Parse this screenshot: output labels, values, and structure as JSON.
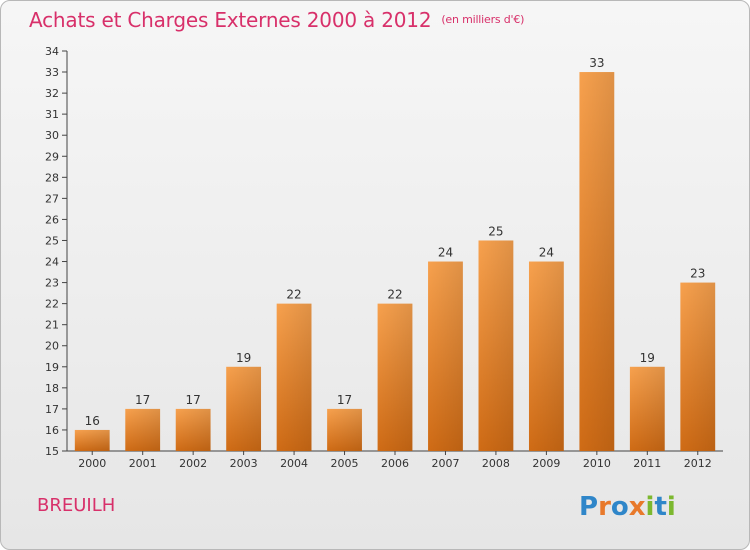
{
  "header": {
    "title": "Achats et Charges Externes 2000 à 2012",
    "unit": "(en milliers d'€)"
  },
  "footer": {
    "commune": "BREUILH",
    "brand": "Proxiti",
    "brand_letters": [
      "P",
      "r",
      "o",
      "x",
      "i",
      "t",
      "i"
    ],
    "brand_colors": [
      "#2f86c9",
      "#e8792b",
      "#2f86c9",
      "#e8792b",
      "#7cb82f",
      "#2f86c9",
      "#7cb82f"
    ]
  },
  "chart_data": {
    "type": "bar",
    "categories": [
      "2000",
      "2001",
      "2002",
      "2003",
      "2004",
      "2005",
      "2006",
      "2007",
      "2008",
      "2009",
      "2010",
      "2011",
      "2012"
    ],
    "values": [
      16,
      17,
      17,
      19,
      22,
      17,
      22,
      24,
      25,
      24,
      33,
      19,
      23
    ],
    "title": "Achats et Charges Externes 2000 à 2012",
    "xlabel": "",
    "ylabel": "",
    "ylim": [
      15,
      34
    ],
    "yticks": [
      15,
      16,
      17,
      18,
      19,
      20,
      21,
      22,
      23,
      24,
      25,
      26,
      27,
      28,
      29,
      30,
      31,
      32,
      33,
      34
    ],
    "grid": false,
    "data_labels": true,
    "bar_color": "#f08a2a"
  }
}
